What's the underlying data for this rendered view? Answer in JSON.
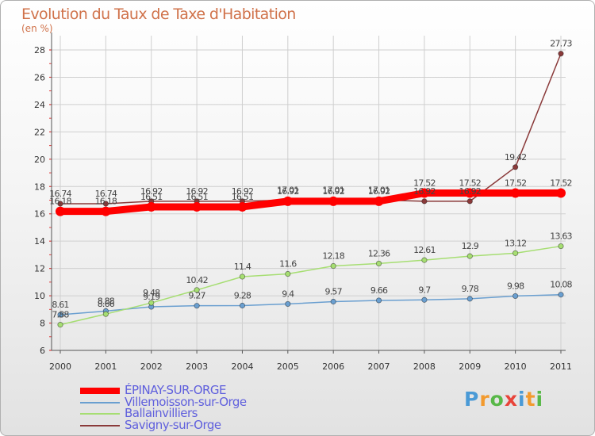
{
  "header": {
    "title": "Evolution du Taux de Taxe d'Habitation",
    "subtitle": "(en %)"
  },
  "brand": {
    "letters": [
      "P",
      "r",
      "o",
      "x",
      "i",
      "t",
      "i"
    ],
    "colors": [
      "#4a9ad6",
      "#f29a2e",
      "#58b848",
      "#e8443a",
      "#4a9ad6",
      "#f29a2e",
      "#58b848"
    ]
  },
  "chart_data": {
    "type": "line",
    "title": "Evolution du Taux de Taxe d'Habitation",
    "ylabel": "(en %)",
    "xlabel": "",
    "x": [
      "2000",
      "2001",
      "2002",
      "2003",
      "2004",
      "2005",
      "2006",
      "2007",
      "2008",
      "2009",
      "2010",
      "2011"
    ],
    "ylim": [
      6,
      28
    ],
    "yticks": [
      "6",
      "8",
      "10",
      "12",
      "14",
      "16",
      "18",
      "20",
      "22",
      "24",
      "26",
      "28"
    ],
    "grid": true,
    "legend_position": "bottom-left",
    "series": [
      {
        "name": "ÉPINAY-SUR-ORGE",
        "color": "#ff0000",
        "values": [
          16.18,
          16.18,
          16.51,
          16.51,
          16.51,
          16.92,
          16.92,
          16.92,
          17.52,
          17.52,
          17.52,
          17.52
        ],
        "labels": [
          "16.18",
          "16.18",
          "16.51",
          "16.51",
          "16.51",
          "16.92",
          "16.92",
          "16.92",
          "17.52",
          "17.52",
          "17.52",
          "17.52"
        ],
        "marker": "none"
      },
      {
        "name": "Villemoisson-sur-Orge",
        "color": "#6a9fd0",
        "values": [
          8.61,
          8.88,
          9.19,
          9.27,
          9.28,
          9.4,
          9.57,
          9.66,
          9.7,
          9.78,
          9.98,
          10.08
        ],
        "labels": [
          "8.61",
          "8.88",
          "9.19",
          "9.27",
          "9.28",
          "9.4",
          "9.57",
          "9.66",
          "9.7",
          "9.78",
          "9.98",
          "10.08"
        ],
        "marker": "circle"
      },
      {
        "name": "Ballainvilliers",
        "color": "#a6de72",
        "values": [
          7.88,
          8.66,
          9.48,
          10.42,
          11.4,
          11.6,
          12.18,
          12.36,
          12.61,
          12.9,
          13.12,
          13.63
        ],
        "labels": [
          "7.88",
          "8.66",
          "9.48",
          "10.42",
          "11.4",
          "11.6",
          "12.18",
          "12.36",
          "12.61",
          "12.9",
          "13.12",
          "13.63"
        ],
        "marker": "circle"
      },
      {
        "name": "Savigny-sur-Orge",
        "color": "#8a3a3a",
        "values": [
          16.74,
          16.74,
          16.92,
          16.92,
          16.92,
          17.01,
          17.01,
          17.01,
          16.92,
          16.92,
          19.42,
          27.73
        ],
        "labels": [
          "16.74",
          "16.74",
          "16.92",
          "16.92",
          "16.92",
          "17.01",
          "17.01",
          "17.01",
          "16.92",
          "16.92",
          "19.42",
          "27.73"
        ],
        "marker": "circle"
      }
    ]
  }
}
